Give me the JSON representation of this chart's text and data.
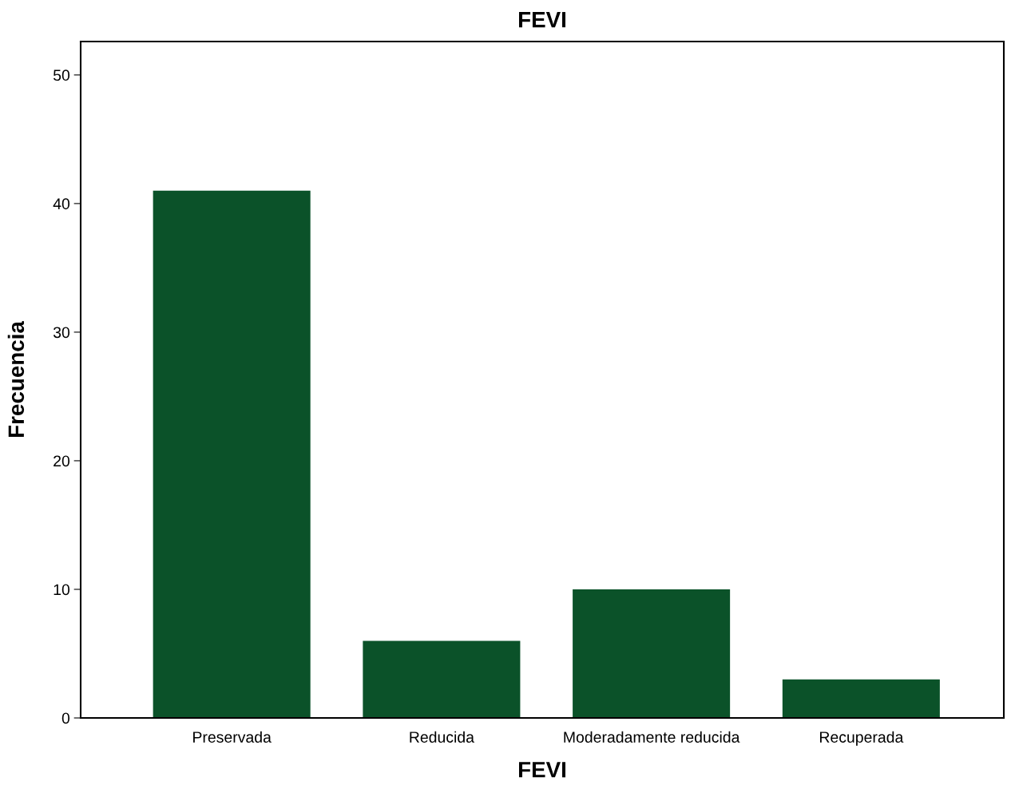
{
  "chart_data": {
    "type": "bar",
    "title": "FEVI",
    "xlabel": "FEVI",
    "ylabel": "Frecuencia",
    "categories": [
      "Preservada",
      "Reducida",
      "Moderadamente reducida",
      "Recuperada"
    ],
    "values": [
      41,
      6,
      10,
      3
    ],
    "color": "#0b5229",
    "ylim": [
      0,
      52.6
    ],
    "yticks": [
      0,
      10,
      20,
      30,
      40,
      50
    ],
    "grid": false
  }
}
